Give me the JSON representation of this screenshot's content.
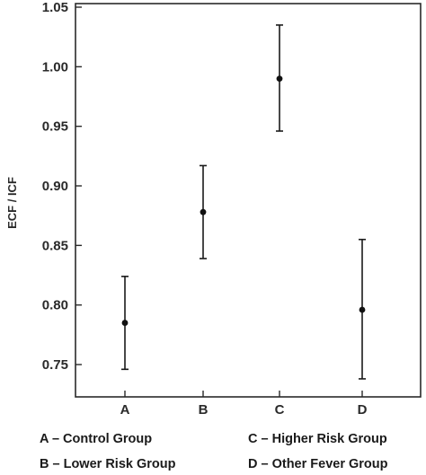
{
  "chart_data": {
    "type": "scatter",
    "ylabel": "ECF / ICF",
    "xlabel": "",
    "ylim": [
      0.72,
      1.05
    ],
    "yticks": [
      "0.75",
      "0.80",
      "0.85",
      "0.90",
      "0.95",
      "1.00",
      "1.05"
    ],
    "grid": false,
    "categories": [
      "A",
      "B",
      "C",
      "D"
    ],
    "points": [
      {
        "category": "A",
        "mean": 0.785,
        "lower": 0.746,
        "upper": 0.824
      },
      {
        "category": "B",
        "mean": 0.878,
        "lower": 0.839,
        "upper": 0.917
      },
      {
        "category": "C",
        "mean": 0.99,
        "lower": 0.946,
        "upper": 1.035
      },
      {
        "category": "D",
        "mean": 0.796,
        "lower": 0.738,
        "upper": 0.855
      }
    ],
    "legend": [
      "A – Control Group",
      "C – Higher Risk Group",
      "B – Lower Risk Group",
      "D – Other Fever Group"
    ],
    "legend_placement": "bottom"
  }
}
